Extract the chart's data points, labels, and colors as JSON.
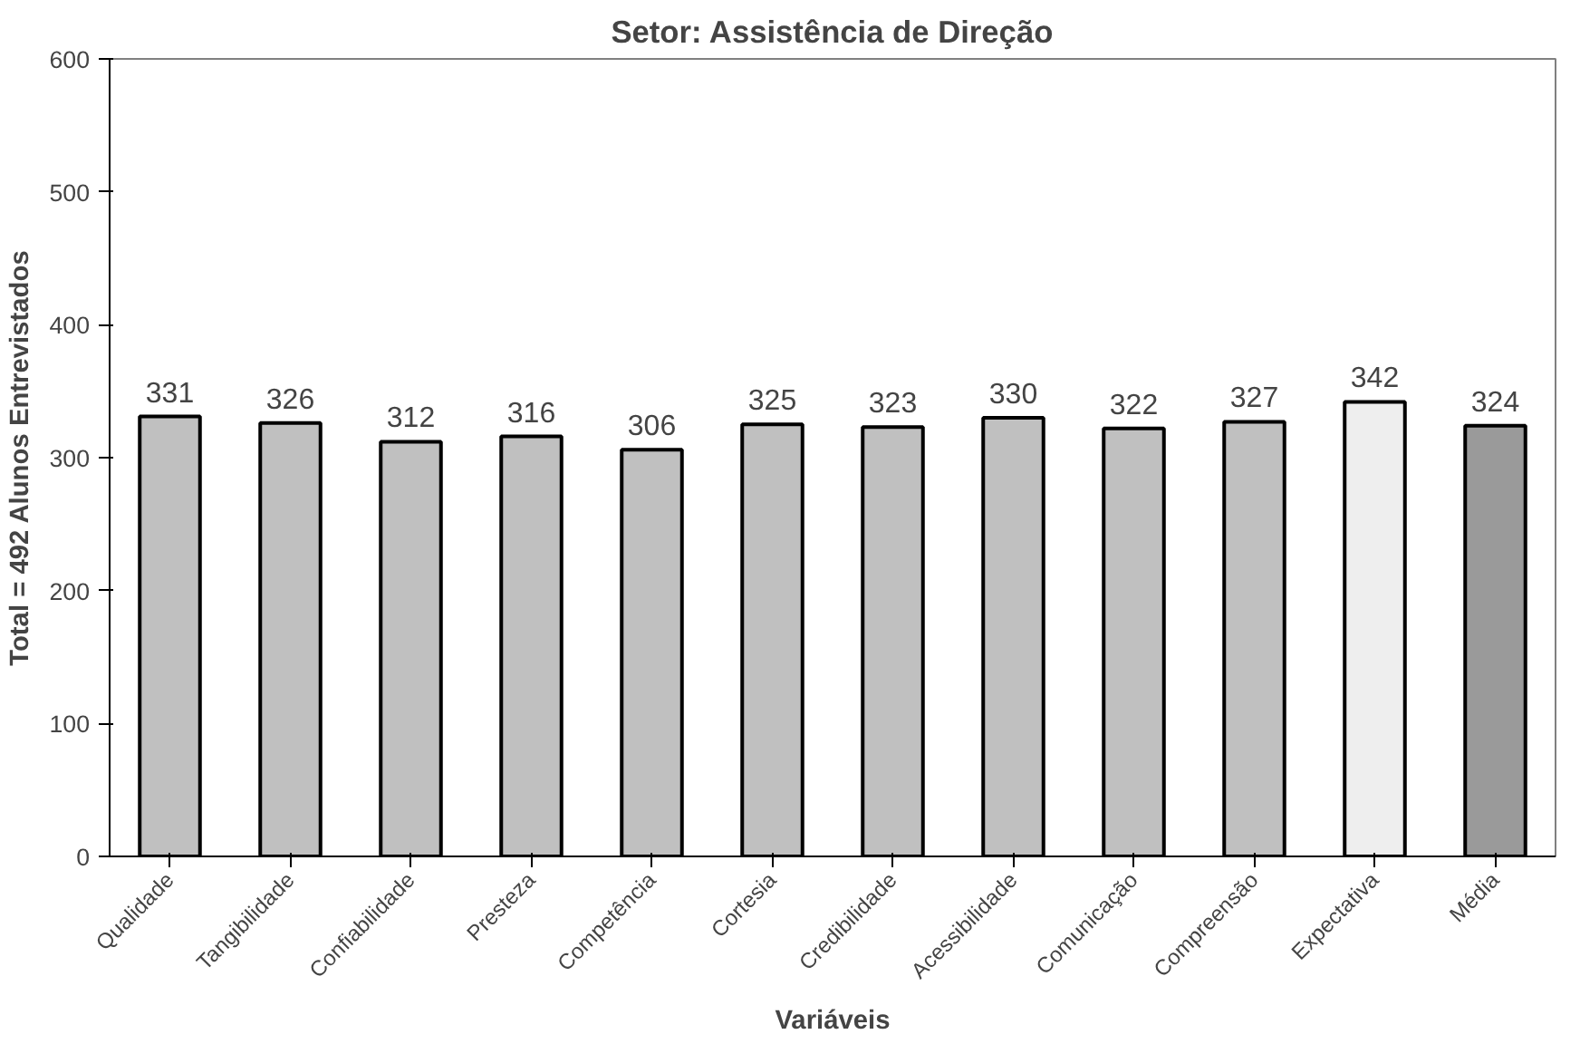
{
  "chart_data": {
    "type": "bar",
    "title": "Setor: Assistência de Direção",
    "xlabel": "Variáveis",
    "ylabel": "Total = 492 Alunos Entrevistados",
    "categories": [
      "Qualidade",
      "Tangibilidade",
      "Confiabilidade",
      "Presteza",
      "Competência",
      "Cortesia",
      "Credibilidade",
      "Acessibilidade",
      "Comunicação",
      "Compreensão",
      "Expectativa",
      "Média"
    ],
    "values": [
      331,
      326,
      312,
      316,
      306,
      325,
      323,
      330,
      322,
      327,
      342,
      324
    ],
    "colors": [
      "#c0c0c0",
      "#c0c0c0",
      "#c0c0c0",
      "#c0c0c0",
      "#c0c0c0",
      "#c0c0c0",
      "#c0c0c0",
      "#c0c0c0",
      "#c0c0c0",
      "#c0c0c0",
      "#eeeeee",
      "#9a9a9a"
    ],
    "ylim": [
      0,
      600
    ],
    "yticks": [
      0,
      100,
      200,
      300,
      400,
      500,
      600
    ],
    "data_labels": true,
    "grid": false
  }
}
